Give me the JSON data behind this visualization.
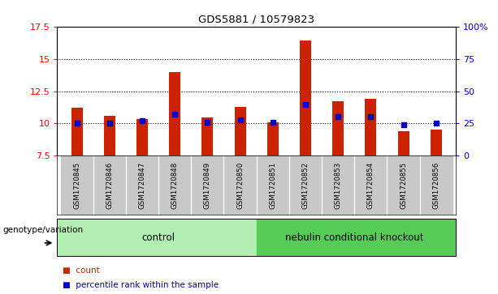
{
  "title": "GDS5881 / 10579823",
  "samples": [
    "GSM1720845",
    "GSM1720846",
    "GSM1720847",
    "GSM1720848",
    "GSM1720849",
    "GSM1720850",
    "GSM1720851",
    "GSM1720852",
    "GSM1720853",
    "GSM1720854",
    "GSM1720855",
    "GSM1720856"
  ],
  "count_values": [
    11.2,
    10.6,
    10.35,
    14.0,
    10.45,
    11.3,
    10.1,
    16.4,
    11.7,
    11.9,
    9.4,
    9.5
  ],
  "percentile_values": [
    25,
    25,
    27,
    32,
    26,
    28,
    26,
    40,
    30,
    30,
    24,
    25
  ],
  "y_min": 7.5,
  "y_max": 17.5,
  "y_ticks_left": [
    7.5,
    10.0,
    12.5,
    15.0,
    17.5
  ],
  "y_ticks_right_vals": [
    0,
    25,
    50,
    75,
    100
  ],
  "y_ticks_right_labels": [
    "0",
    "25",
    "50",
    "75",
    "100%"
  ],
  "bar_color": "#cc2200",
  "dot_color": "#0000cc",
  "bar_bottom": 7.5,
  "group_labels": [
    "control",
    "nebulin conditional knockout"
  ],
  "group_colors": [
    "#b2efb2",
    "#55cc55"
  ],
  "bg_color_samples": "#c8c8c8",
  "legend_labels": [
    "count",
    "percentile rank within the sample"
  ],
  "xlabel_left": "genotype/variation"
}
